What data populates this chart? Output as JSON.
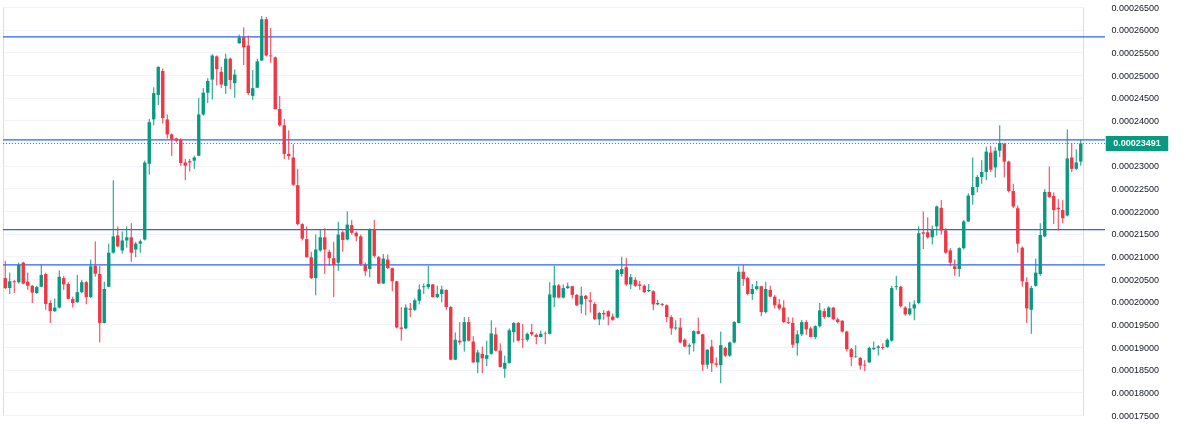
{
  "chart_data": {
    "type": "candlestick",
    "categories": [
      null,
      null,
      null,
      null,
      null,
      null,
      null,
      null,
      null,
      null,
      null,
      null,
      null,
      null,
      null,
      null,
      null,
      null,
      null,
      null,
      null,
      null,
      null,
      null,
      null,
      null,
      null,
      null,
      null,
      null,
      null,
      null,
      null,
      null,
      null,
      null,
      null,
      null,
      null,
      null,
      null,
      null,
      null,
      null,
      null,
      null,
      null,
      null,
      null,
      null,
      null,
      null,
      null,
      null,
      null,
      null,
      null,
      null,
      null,
      null,
      null,
      null,
      null,
      null,
      null,
      null,
      null,
      null,
      null,
      null,
      null,
      null,
      null,
      null,
      null,
      null,
      null,
      null,
      null,
      null,
      null,
      null,
      null,
      null,
      null,
      null,
      null,
      null,
      null,
      null,
      null,
      null,
      null,
      null,
      null,
      null,
      null,
      null,
      null,
      null,
      null,
      null,
      null,
      null,
      null,
      null,
      null,
      null,
      null,
      null,
      null,
      null,
      null,
      null,
      null,
      null,
      null,
      null,
      null,
      null,
      null,
      null,
      null,
      null,
      null,
      null,
      null,
      null,
      null,
      null,
      null,
      null,
      null,
      null,
      null,
      null,
      null,
      null,
      null,
      null,
      null,
      null,
      null,
      null,
      null,
      null,
      null,
      null,
      null,
      null,
      null,
      null,
      null,
      null,
      null,
      null,
      null,
      null,
      null,
      null,
      null,
      null,
      null,
      null,
      null,
      null,
      null,
      null,
      null,
      null,
      null,
      null,
      null,
      null,
      null,
      null,
      null,
      null,
      null,
      null,
      null,
      null,
      null,
      null,
      null,
      null,
      null,
      null,
      null,
      null,
      null,
      null,
      null,
      null,
      null,
      null,
      null,
      null,
      null,
      null,
      null,
      null,
      null,
      null,
      null,
      null,
      null,
      null,
      null,
      null,
      null,
      null,
      null,
      null,
      null,
      null,
      null,
      null,
      null,
      null,
      null,
      null,
      null,
      null,
      null,
      null,
      null,
      null,
      null,
      null,
      null,
      null,
      null,
      null,
      null,
      null,
      null,
      null,
      null,
      null
    ],
    "ohlc": [
      [
        0.0002052,
        0.000209,
        0.0002028,
        0.000203
      ],
      [
        0.000203,
        0.0002064,
        0.0002017,
        0.0002045
      ],
      [
        0.0002045,
        0.0002048,
        0.0002019,
        0.0002043
      ],
      [
        0.0002043,
        0.0002086,
        0.000204,
        0.0002081
      ],
      [
        0.0002086,
        0.0002088,
        0.0002038,
        0.000204
      ],
      [
        0.0002044,
        0.0002064,
        0.0002026,
        0.0002035
      ],
      [
        0.0002035,
        0.0002037,
        0.0001997,
        0.000202
      ],
      [
        0.0002019,
        0.0002035,
        0.0002017,
        0.0002032
      ],
      [
        0.0002033,
        0.0002082,
        0.0002032,
        0.0002059
      ],
      [
        0.0002061,
        0.0002064,
        0.0001982,
        0.0001995
      ],
      [
        0.0001997,
        0.0002003,
        0.0001953,
        0.0001979
      ],
      [
        0.0001979,
        0.0002007,
        0.0001977,
        0.0001987
      ],
      [
        0.0001987,
        0.0002069,
        0.0001985,
        0.0002055
      ],
      [
        0.0002052,
        0.0002057,
        0.0002026,
        0.0002038
      ],
      [
        0.0002039,
        0.0002043,
        0.0002005,
        0.0002006
      ],
      [
        0.0002006,
        0.0002011,
        0.0001987,
        0.0001997
      ],
      [
        0.0001999,
        0.0002059,
        0.0001997,
        0.0002021
      ],
      [
        0.0002021,
        0.0002048,
        0.0002019,
        0.0002043
      ],
      [
        0.0002043,
        0.0002046,
        0.0001994,
        0.000201
      ],
      [
        0.000201,
        0.0002093,
        0.0002008,
        0.0002078
      ],
      [
        0.0002079,
        0.0002133,
        0.0002055,
        0.0002062
      ],
      [
        0.0002061,
        0.0002079,
        0.000191,
        0.0001953
      ],
      [
        0.0001953,
        0.0002044,
        0.0001952,
        0.0002028
      ],
      [
        0.0002033,
        0.0002128,
        0.0002032,
        0.0002108
      ],
      [
        0.0002108,
        0.0002268,
        0.0002106,
        0.0002144
      ],
      [
        0.0002146,
        0.0002166,
        0.000212,
        0.0002122
      ],
      [
        0.0002113,
        0.0002155,
        0.0002106,
        0.0002135
      ],
      [
        0.0002135,
        0.0002166,
        0.0002119,
        0.0002142
      ],
      [
        0.0002142,
        0.0002173,
        0.0002088,
        0.0002108
      ],
      [
        0.0002115,
        0.0002132,
        0.0002098,
        0.0002128
      ],
      [
        0.0002128,
        0.0002137,
        0.0002108,
        0.0002133
      ],
      [
        0.0002137,
        0.0002311,
        0.0002135,
        0.0002307
      ],
      [
        0.0002304,
        0.0002403,
        0.000228,
        0.0002396
      ],
      [
        0.0002402,
        0.0002473,
        0.0002389,
        0.000246
      ],
      [
        0.0002456,
        0.0002519,
        0.0002434,
        0.0002518
      ],
      [
        0.0002509,
        0.0002514,
        0.0002393,
        0.0002405
      ],
      [
        0.0002402,
        0.0002413,
        0.000236,
        0.0002369
      ],
      [
        0.0002369,
        0.0002371,
        0.0002321,
        0.0002358
      ],
      [
        0.000236,
        0.0002362,
        0.0002351,
        0.0002355
      ],
      [
        0.0002357,
        0.000236,
        0.00023,
        0.0002306
      ],
      [
        0.0002307,
        0.0002315,
        0.0002268,
        0.00023
      ],
      [
        0.000231,
        0.0002315,
        0.0002287,
        0.0002307
      ],
      [
        0.0002311,
        0.0002322,
        0.0002293,
        0.0002318
      ],
      [
        0.0002322,
        0.0002449,
        0.0002321,
        0.0002413
      ],
      [
        0.0002413,
        0.0002471,
        0.000241,
        0.0002461
      ],
      [
        0.0002461,
        0.0002493,
        0.0002438,
        0.0002487
      ],
      [
        0.000249,
        0.0002546,
        0.0002446,
        0.0002543
      ],
      [
        0.0002541,
        0.0002543,
        0.0002477,
        0.0002513
      ],
      [
        0.0002507,
        0.0002518,
        0.0002471,
        0.0002479
      ],
      [
        0.0002476,
        0.0002547,
        0.0002458,
        0.0002536
      ],
      [
        0.0002536,
        0.0002538,
        0.0002469,
        0.0002489
      ],
      [
        0.0002482,
        0.0002512,
        0.000245,
        0.0002501
      ],
      [
        0.000257,
        0.0002589,
        0.0002569,
        0.0002583
      ],
      [
        0.0002583,
        0.0002605,
        0.0002522,
        0.0002561
      ],
      [
        0.0002565,
        0.0002587,
        0.0002456,
        0.000246
      ],
      [
        0.0002454,
        0.0002511,
        0.0002445,
        0.0002471
      ],
      [
        0.0002472,
        0.0002536,
        0.0002471,
        0.000253
      ],
      [
        0.0002532,
        0.000263,
        0.0002531,
        0.0002623
      ],
      [
        0.0002623,
        0.0002628,
        0.0002541,
        0.0002543
      ],
      [
        0.0002543,
        0.0002604,
        0.0002527,
        0.0002541
      ],
      [
        0.0002539,
        0.0002541,
        0.0002424,
        0.0002425
      ],
      [
        0.0002425,
        0.0002454,
        0.0002386,
        0.0002389
      ],
      [
        0.0002389,
        0.0002403,
        0.0002315,
        0.0002326
      ],
      [
        0.0002326,
        0.0002378,
        0.0002313,
        0.0002321
      ],
      [
        0.0002318,
        0.0002347,
        0.0002255,
        0.0002258
      ],
      [
        0.0002257,
        0.0002293,
        0.0002168,
        0.0002171
      ],
      [
        0.0002171,
        0.0002173,
        0.0002135,
        0.0002139
      ],
      [
        0.0002138,
        0.0002166,
        0.0002097,
        0.0002098
      ],
      [
        0.0002098,
        0.000211,
        0.000205,
        0.0002052
      ],
      [
        0.0002052,
        0.0002148,
        0.0002014,
        0.0002115
      ],
      [
        0.0002113,
        0.0002159,
        0.000211,
        0.0002142
      ],
      [
        0.0002142,
        0.0002162,
        0.0002061,
        0.0002115
      ],
      [
        0.000211,
        0.0002115,
        0.0002079,
        0.0002096
      ],
      [
        0.0002096,
        0.0002132,
        0.000201,
        0.0002081
      ],
      [
        0.0002086,
        0.0002176,
        0.0002068,
        0.0002148
      ],
      [
        0.0002153,
        0.0002157,
        0.000211,
        0.0002136
      ],
      [
        0.0002137,
        0.0002199,
        0.0002135,
        0.000217
      ],
      [
        0.0002169,
        0.000218,
        0.0002148,
        0.0002152
      ],
      [
        0.0002152,
        0.0002155,
        0.0002133,
        0.0002144
      ],
      [
        0.0002144,
        0.0002148,
        0.0002079,
        0.0002083
      ],
      [
        0.0002081,
        0.0002086,
        0.0002057,
        0.0002067
      ],
      [
        0.0002072,
        0.0002162,
        0.0002054,
        0.000216
      ],
      [
        0.000216,
        0.000218,
        0.0002097,
        0.0002101
      ],
      [
        0.0002098,
        0.0002101,
        0.0002039,
        0.000204
      ],
      [
        0.000204,
        0.0002105,
        0.0002039,
        0.0002095
      ],
      [
        0.0002093,
        0.0002104,
        0.0002072,
        0.0002074
      ],
      [
        0.0002074,
        0.0002075,
        0.0002023,
        0.0002045
      ],
      [
        0.0002045,
        0.0002046,
        0.0001941,
        0.0001943
      ],
      [
        0.0001943,
        0.0001988,
        0.0001914,
        0.000194
      ],
      [
        0.0001941,
        0.0001994,
        0.0001939,
        0.0001987
      ],
      [
        0.0001985,
        0.0001997,
        0.0001966,
        0.0001982
      ],
      [
        0.0001982,
        0.0002007,
        0.0001979,
        0.0002003
      ],
      [
        0.0002002,
        0.0002038,
        0.0001994,
        0.0002027
      ],
      [
        0.0002032,
        0.000204,
        0.0002017,
        0.0002034
      ],
      [
        0.0002032,
        0.0002079,
        0.0002028,
        0.0002039
      ],
      [
        0.0002038,
        0.0002039,
        0.0002009,
        0.000201
      ],
      [
        0.000201,
        0.0002035,
        0.0002008,
        0.0002017
      ],
      [
        0.0002017,
        0.0002035,
        0.0001999,
        0.0002027
      ],
      [
        0.0002026,
        0.0002027,
        0.0001982,
        0.0001988
      ],
      [
        0.0001988,
        0.000199,
        0.0001871,
        0.0001872
      ],
      [
        0.0001872,
        0.0001932,
        0.0001871,
        0.0001916
      ],
      [
        0.0001914,
        0.0001955,
        0.0001905,
        0.000191
      ],
      [
        0.0001912,
        0.0001966,
        0.000189,
        0.0001955
      ],
      [
        0.0001955,
        0.0001966,
        0.0001912,
        0.0001914
      ],
      [
        0.0001912,
        0.0001924,
        0.0001865,
        0.0001866
      ],
      [
        0.0001866,
        0.0001894,
        0.0001842,
        0.0001888
      ],
      [
        0.0001885,
        0.0001901,
        0.0001842,
        0.0001875
      ],
      [
        0.0001874,
        0.0001914,
        0.0001858,
        0.0001882
      ],
      [
        0.0001885,
        0.0001959,
        0.0001883,
        0.000193
      ],
      [
        0.0001928,
        0.0001943,
        0.000189,
        0.0001892
      ],
      [
        0.0001892,
        0.0001908,
        0.0001855,
        0.0001856
      ],
      [
        0.0001852,
        0.0001881,
        0.0001832,
        0.0001865
      ],
      [
        0.0001865,
        0.0001941,
        0.0001863,
        0.0001937
      ],
      [
        0.0001933,
        0.0001955,
        0.000191,
        0.0001953
      ],
      [
        0.0001953,
        0.0001955,
        0.0001912,
        0.0001914
      ],
      [
        0.0001917,
        0.0001951,
        0.0001898,
        0.0001916
      ],
      [
        0.0001916,
        0.0001932,
        0.0001912,
        0.0001929
      ],
      [
        0.0001933,
        0.0001951,
        0.0001924,
        0.0001928
      ],
      [
        0.0001927,
        0.000193,
        0.0001906,
        0.0001922
      ],
      [
        0.0001922,
        0.0001936,
        0.0001921,
        0.0001929
      ],
      [
        0.000193,
        0.0001934,
        0.0001906,
        0.0001929
      ],
      [
        0.0001929,
        0.0002043,
        0.0001928,
        0.0002016
      ],
      [
        0.0002009,
        0.0002079,
        0.0001988,
        0.0002036
      ],
      [
        0.0002036,
        0.0002039,
        0.0002007,
        0.0002009
      ],
      [
        0.0002009,
        0.0002038,
        0.0002007,
        0.000203
      ],
      [
        0.000203,
        0.0002042,
        0.0002028,
        0.0002034
      ],
      [
        0.0002034,
        0.0002035,
        0.0002007,
        0.0002015
      ],
      [
        0.0002015,
        0.0002017,
        0.000199,
        0.0001992
      ],
      [
        0.0001994,
        0.0002033,
        0.0001974,
        0.0002013
      ],
      [
        0.0002013,
        0.0002015,
        0.000197,
        0.0002006
      ],
      [
        0.0002003,
        0.0002021,
        0.0001976,
        0.0002
      ],
      [
        0.0001995,
        0.0001999,
        0.000196,
        0.0001961
      ],
      [
        0.0001961,
        0.0001977,
        0.0001948,
        0.0001975
      ],
      [
        0.0001975,
        0.0001981,
        0.000196,
        0.0001972
      ],
      [
        0.0001979,
        0.0001981,
        0.0001948,
        0.0001967
      ],
      [
        0.0001967,
        0.0001974,
        0.0001958,
        0.000196
      ],
      [
        0.0001965,
        0.0002072,
        0.0001963,
        0.000207
      ],
      [
        0.0002061,
        0.0002099,
        0.0002055,
        0.0002072
      ],
      [
        0.0002076,
        0.0002097,
        0.0002035,
        0.0002038
      ],
      [
        0.0002038,
        0.0002061,
        0.0002028,
        0.0002054
      ],
      [
        0.0002048,
        0.0002054,
        0.0002032,
        0.0002035
      ],
      [
        0.0002038,
        0.0002046,
        0.0002026,
        0.0002035
      ],
      [
        0.0002035,
        0.0002038,
        0.0002019,
        0.0002021
      ],
      [
        0.0002023,
        0.0002039,
        0.0002021,
        0.0002026
      ],
      [
        0.0002023,
        0.0002025,
        0.0001981,
        0.0001994
      ],
      [
        0.0001994,
        0.0002004,
        0.0001992,
        0.0001997
      ],
      [
        0.0001995,
        0.0001997,
        0.000199,
        0.0001993
      ],
      [
        0.0001992,
        0.0001994,
        0.0001955,
        0.0001966
      ],
      [
        0.0001966,
        0.000197,
        0.0001927,
        0.0001941
      ],
      [
        0.0001941,
        0.0001959,
        0.0001937,
        0.0001943
      ],
      [
        0.0001943,
        0.0001964,
        0.0001908,
        0.000191
      ],
      [
        0.0001916,
        0.0001919,
        0.00019,
        0.0001901
      ],
      [
        0.0001901,
        0.0001908,
        0.0001883,
        0.0001904
      ],
      [
        0.0001908,
        0.0001937,
        0.000189,
        0.0001935
      ],
      [
        0.0001935,
        0.0001965,
        0.0001928,
        0.0001929
      ],
      [
        0.0001928,
        0.0001929,
        0.0001847,
        0.0001861
      ],
      [
        0.0001861,
        0.0001895,
        0.0001852,
        0.0001894
      ],
      [
        0.0001901,
        0.0001916,
        0.0001845,
        0.0001864
      ],
      [
        0.0001864,
        0.0001877,
        0.0001856,
        0.0001861
      ],
      [
        0.000186,
        0.0001934,
        0.000182,
        0.0001904
      ],
      [
        0.0001898,
        0.0001901,
        0.0001878,
        0.0001881
      ],
      [
        0.0001881,
        0.0001912,
        0.0001878,
        0.000191
      ],
      [
        0.000191,
        0.0001957,
        0.0001908,
        0.0001955
      ],
      [
        0.0001953,
        0.0002078,
        0.0001952,
        0.0002066
      ],
      [
        0.0002066,
        0.0002081,
        0.0002035,
        0.000205
      ],
      [
        0.0002052,
        0.0002055,
        0.0002014,
        0.0002017
      ],
      [
        0.0002017,
        0.0002039,
        0.0002004,
        0.0002028
      ],
      [
        0.0002028,
        0.0002046,
        0.0002025,
        0.0002034
      ],
      [
        0.0002034,
        0.0002035,
        0.0001968,
        0.0001977
      ],
      [
        0.0001977,
        0.0002044,
        0.0001974,
        0.0002028
      ],
      [
        0.0002026,
        0.0002035,
        0.000201,
        0.0002011
      ],
      [
        0.0002011,
        0.0002015,
        0.0001985,
        0.0001992
      ],
      [
        0.0001994,
        0.0002006,
        0.0001981,
        0.0001985
      ],
      [
        0.0001987,
        0.0002003,
        0.0001953,
        0.0001955
      ],
      [
        0.0001955,
        0.0001966,
        0.0001951,
        0.0001953
      ],
      [
        0.0001953,
        0.0001965,
        0.0001898,
        0.0001905
      ],
      [
        0.0001908,
        0.0001937,
        0.0001881,
        0.0001928
      ],
      [
        0.0001928,
        0.000196,
        0.0001924,
        0.0001955
      ],
      [
        0.0001955,
        0.0001959,
        0.0001927,
        0.0001939
      ],
      [
        0.0001941,
        0.0001945,
        0.0001921,
        0.0001922
      ],
      [
        0.0001922,
        0.0001948,
        0.0001917,
        0.0001946
      ],
      [
        0.0001946,
        0.0001997,
        0.0001943,
        0.0001981
      ],
      [
        0.0001979,
        0.0001985,
        0.0001962,
        0.0001966
      ],
      [
        0.0001966,
        0.000199,
        0.0001965,
        0.0001987
      ],
      [
        0.0001987,
        0.0001988,
        0.000196,
        0.0001961
      ],
      [
        0.0001961,
        0.0001965,
        0.0001952,
        0.0001955
      ],
      [
        0.0001958,
        0.0001959,
        0.0001932,
        0.0001934
      ],
      [
        0.0001934,
        0.0001936,
        0.000189,
        0.0001895
      ],
      [
        0.0001895,
        0.0001898,
        0.0001858,
        0.0001878
      ],
      [
        0.0001878,
        0.0001904,
        0.0001876,
        0.0001879
      ],
      [
        0.0001876,
        0.0001878,
        0.000185,
        0.0001859
      ],
      [
        0.0001861,
        0.0001871,
        0.0001847,
        0.0001859
      ],
      [
        0.0001866,
        0.0001901,
        0.0001865,
        0.0001898
      ],
      [
        0.0001895,
        0.0001912,
        0.0001894,
        0.0001898
      ],
      [
        0.0001898,
        0.0001904,
        0.0001881,
        0.0001901
      ],
      [
        0.00019,
        0.0001908,
        0.0001894,
        0.0001898
      ],
      [
        0.00019,
        0.0001919,
        0.0001898,
        0.0001916
      ],
      [
        0.0001914,
        0.0002035,
        0.0001912,
        0.000203
      ],
      [
        0.0002032,
        0.0002057,
        0.0002026,
        0.0002034
      ],
      [
        0.0002033,
        0.0002035,
        0.0001987,
        0.000199
      ],
      [
        0.0001987,
        0.000199,
        0.0001969,
        0.0001972
      ],
      [
        0.0001972,
        0.0001999,
        0.0001969,
        0.0001985
      ],
      [
        0.0001985,
        0.0002003,
        0.0001959,
        0.0001994
      ],
      [
        0.0001997,
        0.0002166,
        0.0001994,
        0.0002151
      ],
      [
        0.0002153,
        0.0002199,
        0.0002116,
        0.000215
      ],
      [
        0.0002153,
        0.0002186,
        0.0002139,
        0.0002142
      ],
      [
        0.0002142,
        0.0002168,
        0.0002126,
        0.0002159
      ],
      [
        0.0002166,
        0.0002212,
        0.0002146,
        0.000221
      ],
      [
        0.0002207,
        0.0002224,
        0.0002148,
        0.0002157
      ],
      [
        0.0002157,
        0.0002162,
        0.0002106,
        0.0002108
      ],
      [
        0.0002113,
        0.0002118,
        0.0002078,
        0.0002086
      ],
      [
        0.0002078,
        0.0002093,
        0.0002057,
        0.0002072
      ],
      [
        0.0002072,
        0.000212,
        0.0002055,
        0.0002118
      ],
      [
        0.0002118,
        0.000218,
        0.0002115,
        0.0002177
      ],
      [
        0.0002177,
        0.0002239,
        0.0002176,
        0.0002234
      ],
      [
        0.0002235,
        0.0002318,
        0.0002214,
        0.0002253
      ],
      [
        0.0002253,
        0.0002279,
        0.0002241,
        0.0002275
      ],
      [
        0.0002275,
        0.0002312,
        0.000226,
        0.0002286
      ],
      [
        0.0002286,
        0.0002342,
        0.0002268,
        0.0002331
      ],
      [
        0.0002329,
        0.0002344,
        0.0002286,
        0.0002291
      ],
      [
        0.0002296,
        0.0002341,
        0.0002274,
        0.0002333
      ],
      [
        0.0002333,
        0.0002389,
        0.0002319,
        0.000235
      ],
      [
        0.0002348,
        0.000235,
        0.0002274,
        0.0002309
      ],
      [
        0.0002309,
        0.0002311,
        0.0002241,
        0.0002244
      ],
      [
        0.0002244,
        0.000226,
        0.0002206,
        0.000221
      ],
      [
        0.0002206,
        0.0002212,
        0.0002108,
        0.0002128
      ],
      [
        0.0002119,
        0.0002122,
        0.0002033,
        0.0002045
      ],
      [
        0.0002043,
        0.0002054,
        0.0001953,
        0.0001985
      ],
      [
        0.0001982,
        0.0002035,
        0.0001929,
        0.000203
      ],
      [
        0.0002035,
        0.0002095,
        0.0002033,
        0.0002064
      ],
      [
        0.0002061,
        0.0002173,
        0.0002057,
        0.0002147
      ],
      [
        0.0002144,
        0.0002248,
        0.0002142,
        0.0002242
      ],
      [
        0.0002242,
        0.0002298,
        0.0002228,
        0.0002231
      ],
      [
        0.0002233,
        0.0002241,
        0.0002171,
        0.0002202
      ],
      [
        0.0002207,
        0.0002226,
        0.0002157,
        0.0002204
      ],
      [
        0.0002202,
        0.0002224,
        0.0002173,
        0.0002184
      ],
      [
        0.000219,
        0.000238,
        0.0002188,
        0.0002316
      ],
      [
        0.0002318,
        0.000235,
        0.0002286,
        0.0002293
      ],
      [
        0.0002293,
        0.0002336,
        0.000229,
        0.0002307
      ],
      [
        0.0002309,
        0.0002357,
        0.00023,
        0.00023491
      ]
    ],
    "ylim": [
      0.000175,
      0.000265
    ],
    "yticks": [
      {
        "value": 0.000175,
        "label": "0.00017500"
      },
      {
        "value": 0.00018,
        "label": "0.00018000"
      },
      {
        "value": 0.000185,
        "label": "0.00018500"
      },
      {
        "value": 0.00019,
        "label": "0.00019000"
      },
      {
        "value": 0.000195,
        "label": "0.00019500"
      },
      {
        "value": 0.0002,
        "label": "0.00020000"
      },
      {
        "value": 0.000205,
        "label": "0.00020500"
      },
      {
        "value": 0.00021,
        "label": "0.00021000"
      },
      {
        "value": 0.000215,
        "label": "0.00021500"
      },
      {
        "value": 0.00022,
        "label": "0.00022000"
      },
      {
        "value": 0.000225,
        "label": "0.00022500"
      },
      {
        "value": 0.00023,
        "label": "0.00023000"
      },
      {
        "value": 0.000235,
        "label": null
      },
      {
        "value": 0.00024,
        "label": "0.00024000"
      },
      {
        "value": 0.000245,
        "label": "0.00024500"
      },
      {
        "value": 0.00025,
        "label": "0.00025000"
      },
      {
        "value": 0.000255,
        "label": "0.00025500"
      },
      {
        "value": 0.00026,
        "label": "0.00026000"
      },
      {
        "value": 0.000265,
        "label": "0.00026500"
      }
    ],
    "ref_lines": [
      {
        "axis": "y",
        "value": 0.0002584,
        "color": "#2962ff"
      },
      {
        "axis": "y",
        "value": 0.0002357,
        "color": "#2962ff"
      },
      {
        "axis": "y",
        "value": 0.0002159,
        "color": "#2962ff"
      },
      {
        "axis": "y",
        "value": 0.0002081,
        "color": "#2962ff"
      },
      {
        "axis": "y",
        "value": 0.00023491,
        "label": "0.00023491",
        "color": "#089981",
        "line_style": "dotted"
      }
    ],
    "grid": "y",
    "tick_labels": "y"
  }
}
